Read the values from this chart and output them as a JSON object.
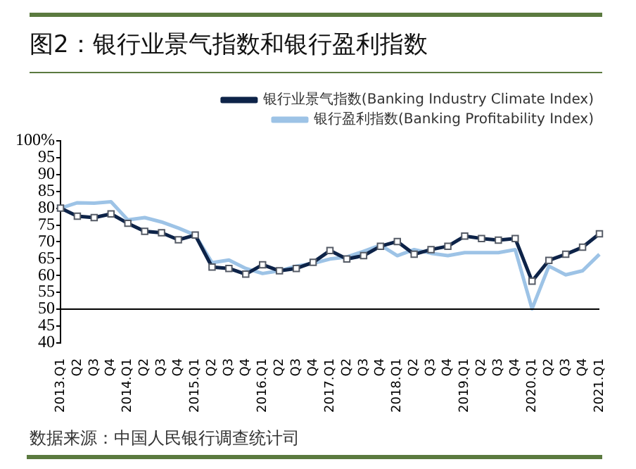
{
  "chart_data": {
    "type": "line",
    "title": "图2：银行业景气指数和银行盈利指数",
    "categories": [
      "2013.Q1",
      "Q2",
      "Q3",
      "Q4",
      "2014.Q1",
      "Q2",
      "Q3",
      "Q4",
      "2015.Q1",
      "Q2",
      "Q3",
      "Q4",
      "2016.Q1",
      "Q2",
      "Q3",
      "Q4",
      "2017.Q1",
      "Q2",
      "Q3",
      "Q4",
      "2018.Q1",
      "Q2",
      "Q3",
      "Q4",
      "2019.Q1",
      "Q2",
      "Q3",
      "Q4",
      "2020.Q1",
      "Q2",
      "Q3",
      "Q4",
      "2021.Q1"
    ],
    "series": [
      {
        "name": "银行业景气指数(Banking Industry Climate Index)",
        "color": "#0d2348",
        "marker": "square",
        "values": [
          80,
          77.6,
          77.2,
          78.3,
          75.5,
          73.1,
          72.7,
          70.6,
          72,
          62.5,
          62.1,
          60.4,
          63.2,
          61.4,
          62.1,
          63.9,
          67.4,
          64.9,
          65.9,
          68.7,
          70.1,
          66.3,
          67.7,
          68.7,
          71.7,
          71,
          70.5,
          71,
          58.3,
          64.5,
          66.3,
          68.4,
          72.4
        ]
      },
      {
        "name": "银行盈利指数(Banking Profitability Index)",
        "color": "#9dc3e6",
        "marker": "none",
        "values": [
          80,
          81.6,
          81.5,
          81.9,
          76.5,
          77.2,
          75.9,
          74.1,
          72,
          63.8,
          64.6,
          62.1,
          60.6,
          61.4,
          62.8,
          63.6,
          64.9,
          65.5,
          67.2,
          69,
          65.9,
          67.7,
          66.6,
          65.9,
          66.8,
          66.8,
          66.8,
          67.7,
          50.1,
          62.8,
          60.2,
          61.4,
          66.3
        ]
      }
    ],
    "ylim": [
      40,
      100
    ],
    "yticks": [
      40,
      45,
      50,
      55,
      60,
      65,
      70,
      75,
      80,
      85,
      90,
      95,
      {
        "value": 100,
        "label": "100%"
      }
    ],
    "ref_lines": [
      {
        "axis": "y",
        "value": 50,
        "color": "#000000"
      }
    ],
    "grid": false,
    "legend": "top",
    "annotations": [
      "数据来源：中国人民银行调查统计司"
    ]
  }
}
